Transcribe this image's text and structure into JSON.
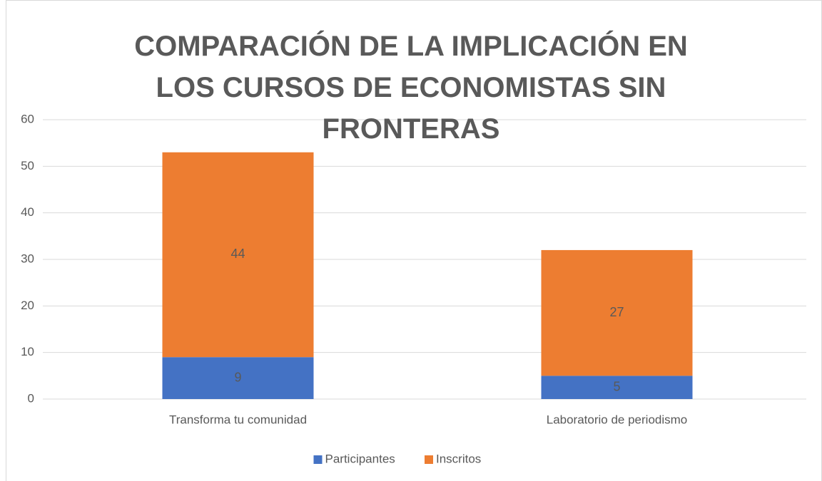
{
  "chart_data": {
    "type": "bar",
    "stacked": true,
    "title": "COMPARACIÓN DE LA IMPLICACIÓN EN LOS CURSOS DE ECONOMISTAS SIN FRONTERAS",
    "categories": [
      "Transforma tu comunidad",
      "Laboratorio de periodismo"
    ],
    "series": [
      {
        "name": "Participantes",
        "color": "#4472c4",
        "values": [
          9,
          5
        ]
      },
      {
        "name": "Inscritos",
        "color": "#ed7d31",
        "values": [
          44,
          27
        ]
      }
    ],
    "ylim": [
      0,
      60
    ],
    "yticks": [
      0,
      10,
      20,
      30,
      40,
      50,
      60
    ],
    "grid": true,
    "legend": "bottom"
  }
}
